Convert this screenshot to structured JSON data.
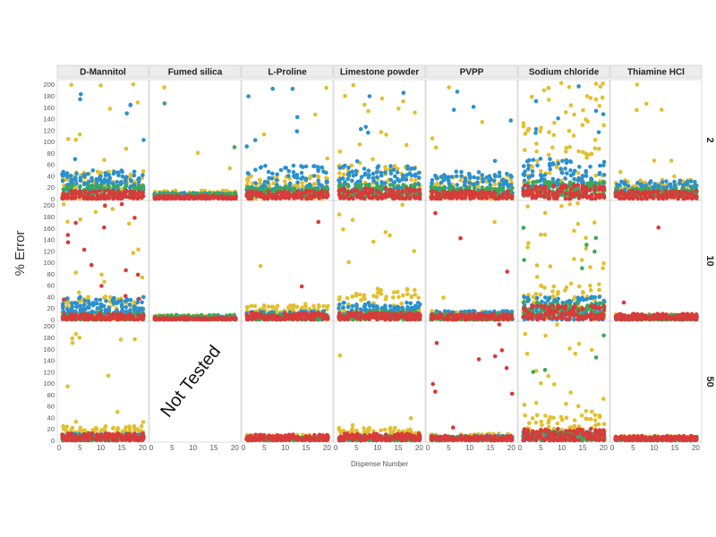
{
  "chart_data": {
    "type": "scatter",
    "ylabel": "% Error",
    "xlabel": "Dispense Number",
    "columns": [
      "D-Mannitol",
      "Fumed silica",
      "L-Proline",
      "Limestone powder",
      "PVPP",
      "Sodium chloride",
      "Thiamine HCl"
    ],
    "rows": [
      "2",
      "10",
      "50"
    ],
    "xlim": [
      0,
      21
    ],
    "ylim": [
      0,
      205
    ],
    "x_ticks": [
      0,
      5,
      10,
      15,
      20
    ],
    "y_ticks": [
      0,
      20,
      40,
      60,
      80,
      100,
      120,
      140,
      160,
      180,
      200
    ],
    "not_tested_label": "Not Tested",
    "not_tested_panel": {
      "column": "Fumed silica",
      "row": "50"
    },
    "colors": {
      "red": "#d93a3a",
      "green": "#3aa858",
      "blue": "#2a90d0",
      "yellow": "#e2bf2d"
    },
    "panels": [
      {
        "column": "D-Mannitol",
        "row": "2",
        "profile": {
          "red": [
            0,
            14
          ],
          "green": [
            3,
            24
          ],
          "blue": [
            14,
            50,
            0.05
          ],
          "yellow": [
            0,
            48,
            0.13
          ]
        }
      },
      {
        "column": "Fumed silica",
        "row": "2",
        "profile": {
          "red": [
            0,
            5
          ],
          "green": [
            1,
            10,
            0.01
          ],
          "blue": [
            2,
            10
          ],
          "yellow": [
            2,
            14,
            0.04
          ]
        }
      },
      {
        "column": "L-Proline",
        "row": "2",
        "profile": {
          "red": [
            0,
            14
          ],
          "green": [
            3,
            20
          ],
          "blue": [
            14,
            58,
            0.06
          ],
          "yellow": [
            0,
            40,
            0.05
          ]
        }
      },
      {
        "column": "Limestone powder",
        "row": "2",
        "profile": {
          "red": [
            0,
            18
          ],
          "green": [
            3,
            25
          ],
          "blue": [
            10,
            58,
            0.05
          ],
          "yellow": [
            0,
            60,
            0.12
          ]
        }
      },
      {
        "column": "PVPP",
        "row": "2",
        "profile": {
          "red": [
            0,
            14
          ],
          "green": [
            3,
            20
          ],
          "blue": [
            10,
            48,
            0.03
          ],
          "yellow": [
            0,
            40,
            0.03
          ]
        }
      },
      {
        "column": "Sodium chloride",
        "row": "2",
        "profile": {
          "red": [
            0,
            25
          ],
          "green": [
            3,
            30
          ],
          "blue": [
            18,
            70,
            0.1
          ],
          "yellow": [
            5,
            95,
            0.32
          ]
        }
      },
      {
        "column": "Thiamine HCl",
        "row": "2",
        "profile": {
          "red": [
            0,
            14
          ],
          "green": [
            3,
            18
          ],
          "blue": [
            8,
            32
          ],
          "yellow": [
            2,
            34,
            0.05
          ]
        }
      },
      {
        "column": "D-Mannitol",
        "row": "10",
        "profile": {
          "red": [
            0,
            10,
            0.07
          ],
          "green": [
            0,
            10
          ],
          "blue": [
            10,
            40
          ],
          "yellow": [
            0,
            40,
            0.12
          ]
        }
      },
      {
        "column": "Fumed silica",
        "row": "10",
        "profile": {
          "red": [
            0,
            3
          ],
          "green": [
            0,
            8
          ],
          "blue": [
            0,
            6
          ],
          "yellow": [
            0,
            8
          ]
        }
      },
      {
        "column": "L-Proline",
        "row": "10",
        "profile": {
          "red": [
            0,
            12,
            0.02
          ],
          "green": [
            0,
            10
          ],
          "blue": [
            0,
            15
          ],
          "yellow": [
            0,
            25,
            0.03
          ]
        }
      },
      {
        "column": "Limestone powder",
        "row": "10",
        "profile": {
          "red": [
            0,
            12
          ],
          "green": [
            0,
            15
          ],
          "blue": [
            5,
            30
          ],
          "yellow": [
            0,
            55,
            0.1
          ]
        }
      },
      {
        "column": "PVPP",
        "row": "10",
        "profile": {
          "red": [
            0,
            10,
            0.03
          ],
          "green": [
            0,
            10
          ],
          "blue": [
            0,
            15
          ],
          "yellow": [
            0,
            15,
            0.02
          ]
        }
      },
      {
        "column": "Sodium chloride",
        "row": "10",
        "profile": {
          "red": [
            0,
            25
          ],
          "green": [
            5,
            30,
            0.04
          ],
          "blue": [
            0,
            40
          ],
          "yellow": [
            0,
            60,
            0.22
          ]
        }
      },
      {
        "column": "Thiamine HCl",
        "row": "10",
        "profile": {
          "red": [
            0,
            10,
            0.02
          ],
          "green": [
            0,
            8
          ],
          "blue": [
            0,
            8
          ],
          "yellow": [
            0,
            10
          ]
        }
      },
      {
        "column": "D-Mannitol",
        "row": "50",
        "profile": {
          "red": [
            0,
            12
          ],
          "green": [
            0,
            8
          ],
          "blue": [
            0,
            12
          ],
          "yellow": [
            0,
            25,
            0.05
          ]
        }
      },
      {
        "column": "L-Proline",
        "row": "50",
        "profile": {
          "red": [
            0,
            10
          ],
          "green": [
            0,
            6
          ],
          "blue": [
            0,
            6
          ],
          "yellow": [
            0,
            10
          ]
        }
      },
      {
        "column": "Limestone powder",
        "row": "50",
        "profile": {
          "red": [
            0,
            12
          ],
          "green": [
            0,
            8
          ],
          "blue": [
            0,
            8
          ],
          "yellow": [
            0,
            22,
            0.03
          ]
        }
      },
      {
        "column": "PVPP",
        "row": "50",
        "profile": {
          "red": [
            0,
            8,
            0.06
          ],
          "green": [
            0,
            6
          ],
          "blue": [
            0,
            8
          ],
          "yellow": [
            0,
            12
          ]
        }
      },
      {
        "column": "Sodium chloride",
        "row": "50",
        "profile": {
          "red": [
            0,
            20
          ],
          "green": [
            0,
            15,
            0.02
          ],
          "blue": [
            0,
            15
          ],
          "yellow": [
            0,
            45,
            0.18
          ]
        }
      },
      {
        "column": "Thiamine HCl",
        "row": "50",
        "profile": {
          "red": [
            0,
            8
          ],
          "green": [
            0,
            6
          ],
          "blue": [
            0,
            6
          ],
          "yellow": [
            0,
            8
          ]
        }
      }
    ]
  }
}
